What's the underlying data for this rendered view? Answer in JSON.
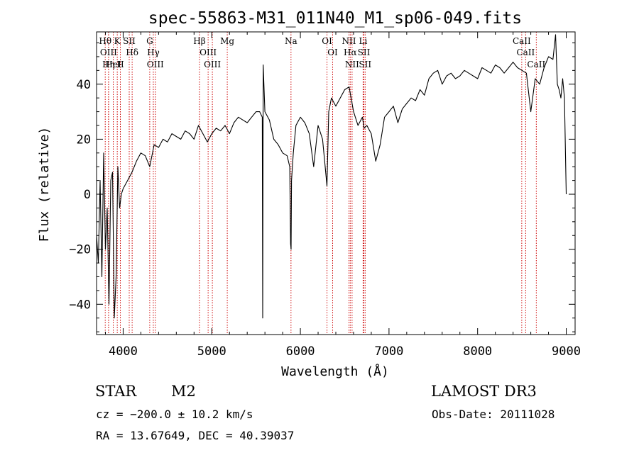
{
  "chart_data": {
    "type": "line",
    "title": "spec-55863-M31_011N40_M1_sp06-049.fits",
    "xlabel": "Wavelength (Å)",
    "ylabel": "Flux (relative)",
    "xlim": [
      3700,
      9100
    ],
    "ylim": [
      -51,
      59
    ],
    "xticks": [
      4000,
      5000,
      6000,
      7000,
      8000,
      9000
    ],
    "xtick_labels": [
      "4000",
      "5000",
      "6000",
      "7000",
      "8000",
      "9000"
    ],
    "yticks": [
      -40,
      -20,
      0,
      20,
      40
    ],
    "ytick_labels": [
      "−40",
      "−20",
      "0",
      "20",
      "40"
    ],
    "series": [
      {
        "name": "flux",
        "color": "#000000",
        "x": [
          3700,
          3720,
          3740,
          3760,
          3780,
          3800,
          3820,
          3840,
          3860,
          3880,
          3900,
          3920,
          3940,
          3960,
          3980,
          4000,
          4050,
          4100,
          4150,
          4200,
          4250,
          4300,
          4350,
          4400,
          4450,
          4500,
          4550,
          4600,
          4650,
          4700,
          4750,
          4800,
          4850,
          4900,
          4950,
          5000,
          5050,
          5100,
          5150,
          5200,
          5250,
          5300,
          5350,
          5400,
          5450,
          5500,
          5540,
          5570,
          5575,
          5580,
          5600,
          5650,
          5700,
          5750,
          5800,
          5850,
          5880,
          5890,
          5895,
          5900,
          5920,
          5950,
          6000,
          6050,
          6100,
          6150,
          6200,
          6250,
          6280,
          6300,
          6320,
          6350,
          6400,
          6450,
          6500,
          6550,
          6600,
          6650,
          6700,
          6720,
          6750,
          6800,
          6850,
          6900,
          6950,
          7000,
          7050,
          7100,
          7150,
          7200,
          7250,
          7300,
          7350,
          7400,
          7450,
          7500,
          7550,
          7600,
          7650,
          7700,
          7750,
          7800,
          7850,
          7900,
          7950,
          8000,
          8050,
          8100,
          8150,
          8200,
          8250,
          8300,
          8350,
          8400,
          8450,
          8500,
          8550,
          8600,
          8650,
          8700,
          8750,
          8800,
          8850,
          8880,
          8900,
          8920,
          8940,
          8960,
          8980,
          9000
        ],
        "y": [
          -15,
          -25,
          5,
          -30,
          15,
          -20,
          -5,
          -40,
          5,
          8,
          -45,
          -30,
          10,
          -5,
          0,
          2,
          5,
          8,
          12,
          15,
          14,
          10,
          18,
          17,
          20,
          19,
          22,
          21,
          20,
          23,
          22,
          20,
          25,
          22,
          19,
          22,
          24,
          23,
          25,
          22,
          26,
          28,
          27,
          26,
          28,
          30,
          30,
          28,
          -45,
          47,
          30,
          27,
          20,
          18,
          15,
          14,
          10,
          -18,
          -20,
          5,
          15,
          25,
          28,
          26,
          22,
          10,
          25,
          20,
          10,
          3,
          30,
          35,
          32,
          35,
          38,
          39,
          30,
          25,
          28,
          24,
          25,
          22,
          12,
          18,
          28,
          30,
          32,
          26,
          31,
          33,
          35,
          34,
          38,
          36,
          42,
          44,
          45,
          40,
          43,
          44,
          42,
          43,
          45,
          44,
          43,
          42,
          46,
          45,
          44,
          47,
          46,
          44,
          46,
          48,
          46,
          45,
          44,
          30,
          42,
          40,
          46,
          50,
          49,
          58,
          40,
          38,
          35,
          42,
          35,
          0
        ]
      }
    ],
    "lines": [
      {
        "label": "Hθ",
        "wavelength": 3797.9
      },
      {
        "label": "OIII",
        "wavelength": 3835.4
      },
      {
        "label": "Hη",
        "wavelength": 3835.4
      },
      {
        "label": "HeI",
        "wavelength": 3888.6
      },
      {
        "label": "K",
        "wavelength": 3933.7
      },
      {
        "label": "H",
        "wavelength": 3968.5
      },
      {
        "label": "SII",
        "wavelength": 4068.6
      },
      {
        "label": "Hδ",
        "wavelength": 4101.7
      },
      {
        "label": "OIII",
        "wavelength": 4363.2
      },
      {
        "label": "Hγ",
        "wavelength": 4340.5
      },
      {
        "label": "G",
        "wavelength": 4300.0
      },
      {
        "label": "Hβ",
        "wavelength": 4861.3
      },
      {
        "label": "OIII",
        "wavelength": 4959.0
      },
      {
        "label": "OIII",
        "wavelength": 5006.8
      },
      {
        "label": "Mg",
        "wavelength": 5175.0
      },
      {
        "label": "Na",
        "wavelength": 5894.0
      },
      {
        "label": "OI",
        "wavelength": 6300.3
      },
      {
        "label": "OI",
        "wavelength": 6363.8
      },
      {
        "label": "NII",
        "wavelength": 6548.1
      },
      {
        "label": "Hα",
        "wavelength": 6562.8
      },
      {
        "label": "NII",
        "wavelength": 6583.4
      },
      {
        "label": "Li",
        "wavelength": 6707.8
      },
      {
        "label": "SII",
        "wavelength": 6716.4
      },
      {
        "label": "SII",
        "wavelength": 6730.8
      },
      {
        "label": "CaII",
        "wavelength": 8498.0
      },
      {
        "label": "CaII",
        "wavelength": 8542.1
      },
      {
        "label": "CaII",
        "wavelength": 8662.1
      }
    ],
    "colors": {
      "spectrum": "#000000",
      "line_markers": "#cc0000",
      "axes": "#000000"
    }
  },
  "footer": {
    "object_class": "STAR",
    "subclass": "M2",
    "survey": "LAMOST DR3",
    "cz": "cz = −200.0 ± 10.2 km/s",
    "obs_date": "Obs-Date: 20111028",
    "radec": "RA =  13.67649, DEC =  40.39037"
  }
}
